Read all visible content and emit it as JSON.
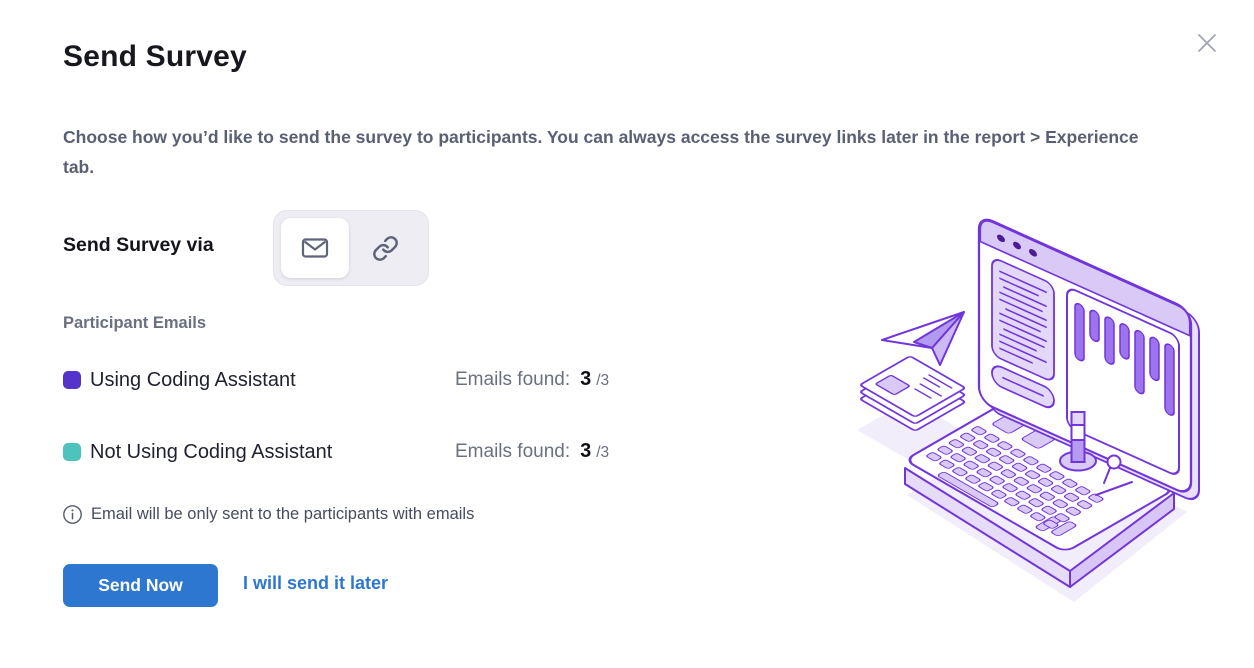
{
  "dialog": {
    "title": "Send Survey",
    "description": "Choose how you’d like to send the survey to participants. You can always access the survey links later in the report > Experience tab."
  },
  "send_via": {
    "label": "Send Survey via",
    "options": [
      {
        "id": "email",
        "icon": "envelope-icon",
        "selected": true
      },
      {
        "id": "link",
        "icon": "link-icon",
        "selected": false
      }
    ]
  },
  "participants": {
    "section_label": "Participant Emails",
    "groups": [
      {
        "label": "Using Coding Assistant",
        "color": "#5634cb",
        "emails_found_label": "Emails found:",
        "found": "3",
        "of_total": "/3"
      },
      {
        "label": "Not Using Coding Assistant",
        "color": "#4ec3be",
        "emails_found_label": "Emails found:",
        "found": "3",
        "of_total": "/3"
      }
    ],
    "note": "Email will be only sent to the participants with emails"
  },
  "actions": {
    "send_now": "Send Now",
    "send_later": "I will send it later"
  },
  "colors": {
    "primary_blue": "#2e77d0",
    "group1_swatch": "#5634cb",
    "group2_swatch": "#4ec3be",
    "illustration_stroke": "#7136d9",
    "illustration_bar": "#9d74ee"
  }
}
